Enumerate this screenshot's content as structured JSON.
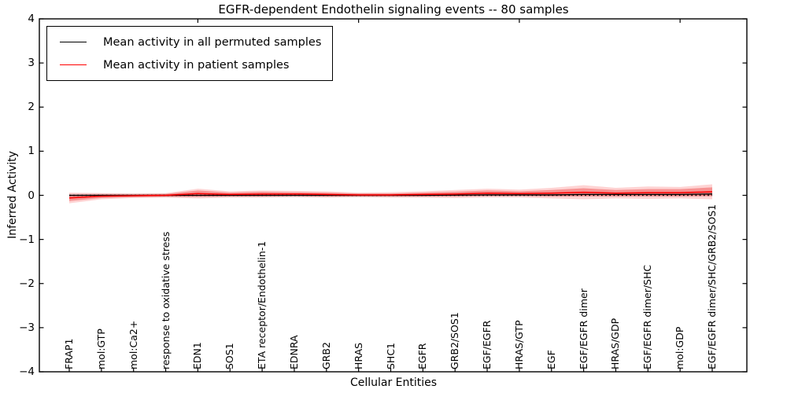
{
  "figure": {
    "title": "EGFR-dependent Endothelin signaling events -- 80 samples",
    "xlabel": "Cellular Entities",
    "ylabel": "Inferred Activity"
  },
  "legend": {
    "entries": [
      {
        "label": "Mean activity in all permuted samples",
        "color": "#000000"
      },
      {
        "label": "Mean activity in patient samples",
        "color": "#ff0000"
      }
    ]
  },
  "chart_data": {
    "type": "line",
    "title": "EGFR-dependent Endothelin signaling events -- 80 samples",
    "xlabel": "Cellular Entities",
    "ylabel": "Inferred Activity",
    "ylim": [
      -4,
      4
    ],
    "yticks": [
      -4,
      -3,
      -2,
      -1,
      0,
      1,
      2,
      3,
      4
    ],
    "grid": false,
    "legend_position": "upper left",
    "categories": [
      "FRAP1",
      "mol:GTP",
      "mol:Ca2+",
      "response to oxidative stress",
      "EDN1",
      "SOS1",
      "ETA receptor/Endothelin-1",
      "EDNRA",
      "GRB2",
      "HRAS",
      "SHC1",
      "EGFR",
      "GRB2/SOS1",
      "EGF/EGFR",
      "HRAS/GTP",
      "EGF",
      "EGF/EGFR dimer",
      "HRAS/GDP",
      "EGF/EGFR dimer/SHC",
      "mol:GDP",
      "EGF/EGFR dimer/SHC/GRB2/SOS1"
    ],
    "series": [
      {
        "name": "Mean activity in all permuted samples",
        "color": "#000000",
        "values": [
          0,
          0,
          0,
          0,
          0,
          0,
          0,
          0,
          0,
          0,
          0,
          0,
          0.005,
          0.01,
          0.01,
          0.01,
          0.02,
          0.02,
          0.02,
          0.02,
          0.03
        ],
        "band_halfwidth": [
          0.035,
          0.035,
          0.035,
          0.035,
          0.035,
          0.035,
          0.035,
          0.035,
          0.035,
          0.035,
          0.035,
          0.035,
          0.035,
          0.035,
          0.035,
          0.035,
          0.04,
          0.04,
          0.04,
          0.04,
          0.04
        ],
        "band_color": "rgba(130,130,130,0.30)"
      },
      {
        "name": "Mean activity in patient samples",
        "color": "#ff0000",
        "values": [
          -0.06,
          -0.02,
          -0.01,
          0.0,
          0.04,
          0.02,
          0.03,
          0.03,
          0.02,
          0.01,
          0.01,
          0.02,
          0.03,
          0.05,
          0.04,
          0.05,
          0.07,
          0.05,
          0.06,
          0.06,
          0.08
        ],
        "band_inner_halfwidth": [
          0.07,
          0.04,
          0.03,
          0.03,
          0.07,
          0.04,
          0.05,
          0.04,
          0.04,
          0.03,
          0.03,
          0.04,
          0.05,
          0.06,
          0.05,
          0.07,
          0.09,
          0.07,
          0.08,
          0.08,
          0.1
        ],
        "band_outer_halfwidth": [
          0.12,
          0.07,
          0.05,
          0.05,
          0.11,
          0.07,
          0.08,
          0.07,
          0.07,
          0.05,
          0.06,
          0.07,
          0.09,
          0.1,
          0.09,
          0.12,
          0.16,
          0.12,
          0.14,
          0.13,
          0.17
        ],
        "band_inner_color": "rgba(235,40,40,0.38)",
        "band_outer_color": "rgba(250,80,80,0.25)"
      }
    ],
    "reference_line": {
      "y": 0,
      "style": "dotted",
      "color": "#000000"
    }
  }
}
